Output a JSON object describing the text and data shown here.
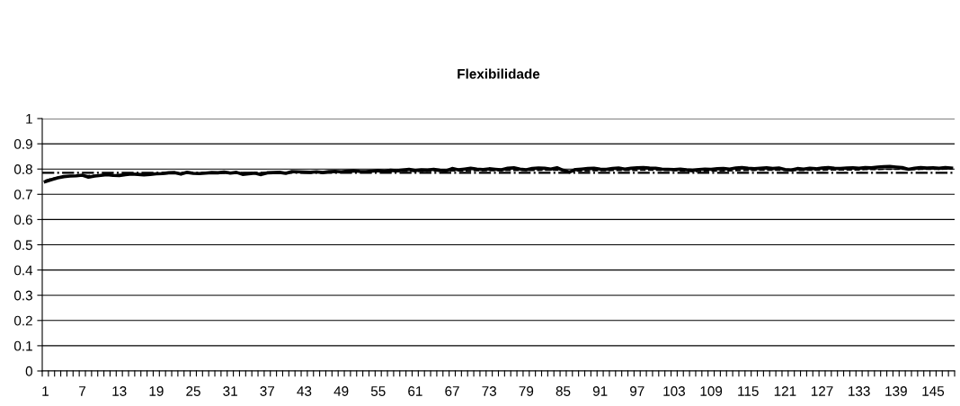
{
  "chart_data": {
    "type": "line",
    "title": "Flexibilidade",
    "categories": [
      "1",
      null,
      null,
      null,
      null,
      null,
      "7",
      null,
      null,
      null,
      null,
      null,
      "13",
      null,
      null,
      null,
      null,
      null,
      "19",
      null,
      null,
      null,
      null,
      null,
      "25",
      null,
      null,
      null,
      null,
      null,
      "31",
      null,
      null,
      null,
      null,
      null,
      "37",
      null,
      null,
      null,
      null,
      null,
      "43",
      null,
      null,
      null,
      null,
      null,
      "49",
      null,
      null,
      null,
      null,
      null,
      "55",
      null,
      null,
      null,
      null,
      null,
      "61",
      null,
      null,
      null,
      null,
      null,
      "67",
      null,
      null,
      null,
      null,
      null,
      "73",
      null,
      null,
      null,
      null,
      null,
      "79",
      null,
      null,
      null,
      null,
      null,
      "85",
      null,
      null,
      null,
      null,
      null,
      "91",
      null,
      null,
      null,
      null,
      null,
      "97",
      null,
      null,
      null,
      null,
      null,
      "103",
      null,
      null,
      null,
      null,
      null,
      "109",
      null,
      null,
      null,
      null,
      null,
      "115",
      null,
      null,
      null,
      null,
      null,
      "121",
      null,
      null,
      null,
      null,
      null,
      "127",
      null,
      null,
      null,
      null,
      null,
      "133",
      null,
      null,
      null,
      null,
      null,
      "139",
      null,
      null,
      null,
      null,
      null,
      "145",
      null,
      null,
      null
    ],
    "series": [
      {
        "color": "#000000",
        "line_style": "solid",
        "values": [
          0.75,
          0.758,
          0.765,
          0.77,
          0.772,
          0.773,
          0.776,
          0.768,
          0.772,
          0.775,
          0.778,
          0.775,
          0.774,
          0.778,
          0.78,
          0.779,
          0.777,
          0.779,
          0.781,
          0.782,
          0.785,
          0.786,
          0.78,
          0.787,
          0.783,
          0.782,
          0.784,
          0.786,
          0.785,
          0.788,
          0.784,
          0.787,
          0.779,
          0.781,
          0.784,
          0.778,
          0.785,
          0.786,
          0.787,
          0.783,
          0.79,
          0.789,
          0.788,
          0.787,
          0.789,
          0.786,
          0.79,
          0.791,
          0.789,
          0.792,
          0.793,
          0.791,
          0.79,
          0.792,
          0.794,
          0.792,
          0.795,
          0.793,
          0.796,
          0.799,
          0.794,
          0.797,
          0.796,
          0.799,
          0.795,
          0.793,
          0.802,
          0.797,
          0.8,
          0.803,
          0.8,
          0.798,
          0.801,
          0.799,
          0.797,
          0.803,
          0.805,
          0.8,
          0.797,
          0.802,
          0.804,
          0.803,
          0.8,
          0.805,
          0.795,
          0.788,
          0.798,
          0.8,
          0.802,
          0.803,
          0.8,
          0.799,
          0.802,
          0.804,
          0.8,
          0.803,
          0.805,
          0.806,
          0.804,
          0.803,
          0.8,
          0.799,
          0.798,
          0.8,
          0.797,
          0.795,
          0.798,
          0.8,
          0.799,
          0.801,
          0.802,
          0.8,
          0.804,
          0.806,
          0.803,
          0.801,
          0.803,
          0.805,
          0.802,
          0.804,
          0.798,
          0.796,
          0.802,
          0.8,
          0.803,
          0.801,
          0.804,
          0.806,
          0.803,
          0.802,
          0.804,
          0.805,
          0.803,
          0.806,
          0.805,
          0.808,
          0.809,
          0.81,
          0.808,
          0.806,
          0.799,
          0.803,
          0.806,
          0.804,
          0.805,
          0.803,
          0.806,
          0.804
        ]
      },
      {
        "color": "#000000",
        "line_style": "dashed",
        "values": [
          0.755,
          0.762,
          0.767,
          0.77,
          0.772,
          0.773,
          0.774,
          0.774,
          0.775,
          0.776,
          0.777,
          0.777,
          0.778,
          0.778,
          0.779,
          0.779,
          0.779,
          0.78,
          0.781,
          0.781,
          0.782,
          0.782,
          0.782,
          0.783,
          0.783,
          0.783,
          0.783,
          0.784,
          0.784,
          0.784,
          0.784,
          0.784,
          0.784,
          0.784,
          0.784,
          0.784,
          0.784,
          0.785,
          0.785,
          0.785,
          0.786,
          0.786,
          0.786,
          0.787,
          0.787,
          0.787,
          0.788,
          0.788,
          0.788,
          0.788,
          0.789,
          0.789,
          0.789,
          0.789,
          0.79,
          0.79,
          0.79,
          0.79,
          0.791,
          0.791,
          0.791,
          0.791,
          0.792,
          0.792,
          0.792,
          0.792,
          0.793,
          0.793,
          0.793,
          0.793,
          0.794,
          0.794,
          0.794,
          0.794,
          0.794,
          0.795,
          0.795,
          0.795,
          0.795,
          0.795,
          0.795,
          0.796,
          0.796,
          0.796,
          0.795,
          0.79,
          0.792,
          0.793,
          0.793,
          0.794,
          0.794,
          0.794,
          0.795,
          0.795,
          0.795,
          0.795,
          0.795,
          0.796,
          0.796,
          0.796,
          0.795,
          0.795,
          0.794,
          0.793,
          0.792,
          0.79,
          0.79,
          0.791,
          0.792,
          0.792,
          0.793,
          0.793,
          0.794,
          0.795,
          0.795,
          0.795,
          0.796,
          0.796,
          0.796,
          0.796,
          0.795,
          0.794,
          0.795,
          0.795,
          0.796,
          0.796,
          0.796,
          0.797,
          0.797,
          0.797,
          0.797,
          0.797,
          0.797,
          0.798,
          0.798,
          0.798,
          0.799,
          0.799,
          0.799,
          0.799,
          0.798,
          0.798,
          0.799,
          0.799,
          0.799,
          0.799,
          0.8,
          0.8
        ]
      }
    ],
    "ref_lines": [
      {
        "axis": "y",
        "value": 0.785,
        "color": "#000000",
        "line_style": "dashdot"
      }
    ],
    "ylim": [
      0,
      1
    ],
    "yticks": [
      0,
      0.1,
      0.2,
      0.3,
      0.4,
      0.5,
      0.6,
      0.7,
      0.8,
      0.9,
      1
    ],
    "grid": "y",
    "legend": false,
    "marker": "none"
  }
}
